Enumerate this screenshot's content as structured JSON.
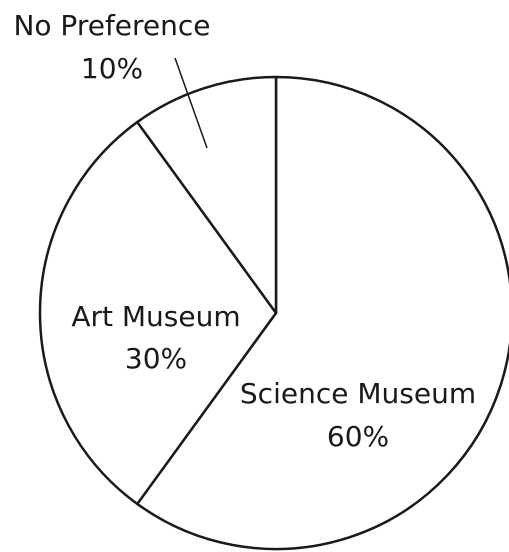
{
  "chart_data": {
    "type": "pie",
    "labels": [
      "Science Museum",
      "Art Museum",
      "No Preference"
    ],
    "values": [
      60,
      30,
      10
    ],
    "value_labels": [
      "60%",
      "30%",
      "10%"
    ],
    "color": "#ffffff",
    "edge_color": "#1a1a1a"
  }
}
